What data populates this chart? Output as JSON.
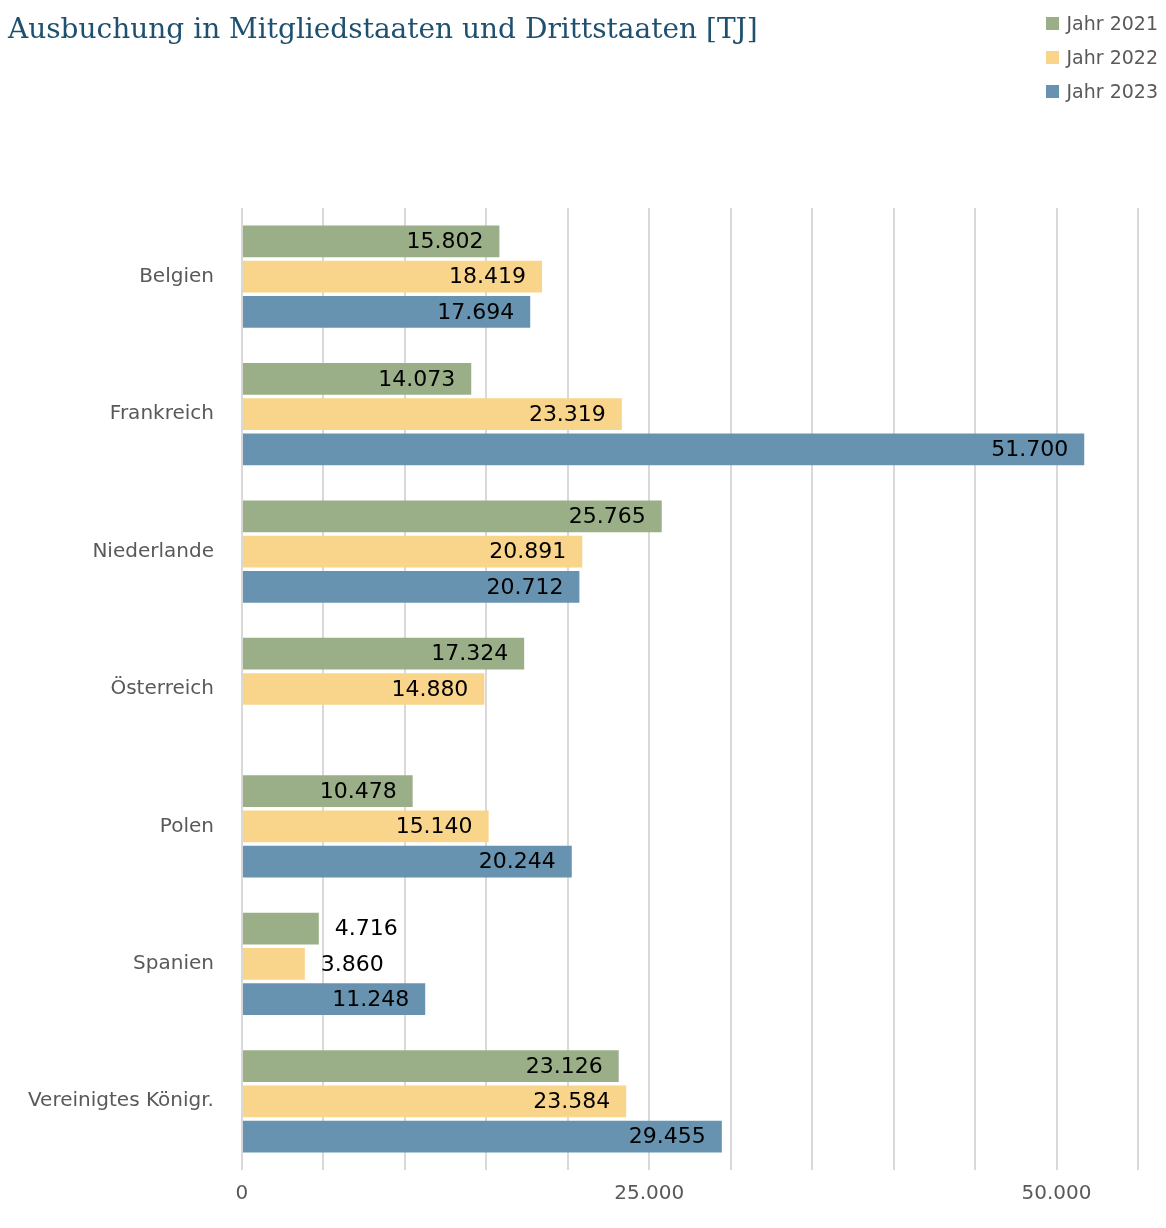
{
  "chart_data": {
    "type": "bar",
    "orientation": "horizontal",
    "title": "Ausbuchung in Mitgliedstaaten und Drittstaaten [TJ]",
    "categories": [
      "Belgien",
      "Frankreich",
      "Niederlande",
      "Österreich",
      "Polen",
      "Spanien",
      "Vereinigtes Königr."
    ],
    "series": [
      {
        "name": "Jahr 2021",
        "color": "#9aaf88",
        "values": [
          15802,
          14073,
          25765,
          17324,
          10478,
          4716,
          23126
        ],
        "value_labels": [
          "15.802",
          "14.073",
          "25.765",
          "17.324",
          "10.478",
          "4.716",
          "23.126"
        ]
      },
      {
        "name": "Jahr 2022",
        "color": "#f9d58b",
        "values": [
          18419,
          23319,
          20891,
          14880,
          15140,
          3860,
          23584
        ],
        "value_labels": [
          "18.419",
          "23.319",
          "20.891",
          "14.880",
          "15.140",
          "3.860",
          "23.584"
        ]
      },
      {
        "name": "Jahr 2023",
        "color": "#6793b0",
        "values": [
          17694,
          51700,
          20712,
          null,
          20244,
          11248,
          29455
        ],
        "value_labels": [
          "17.694",
          "51.700",
          "20.712",
          null,
          "20.244",
          "11.248",
          "29.455"
        ]
      }
    ],
    "xlim": [
      0,
      55000
    ],
    "xticks": [
      0,
      {
        "value": 5000,
        "label": null
      },
      {
        "value": 10000,
        "label": null
      },
      {
        "value": 15000,
        "label": null
      },
      {
        "value": 20000,
        "label": null
      },
      {
        "value": 25000,
        "label": "25.000"
      },
      {
        "value": 30000,
        "label": null
      },
      {
        "value": 35000,
        "label": null
      },
      {
        "value": 40000,
        "label": null
      },
      {
        "value": 45000,
        "label": null
      },
      {
        "value": 50000,
        "label": "50.000"
      },
      {
        "value": 55000,
        "label": null
      }
    ],
    "grid": "x",
    "legend": "top right"
  }
}
